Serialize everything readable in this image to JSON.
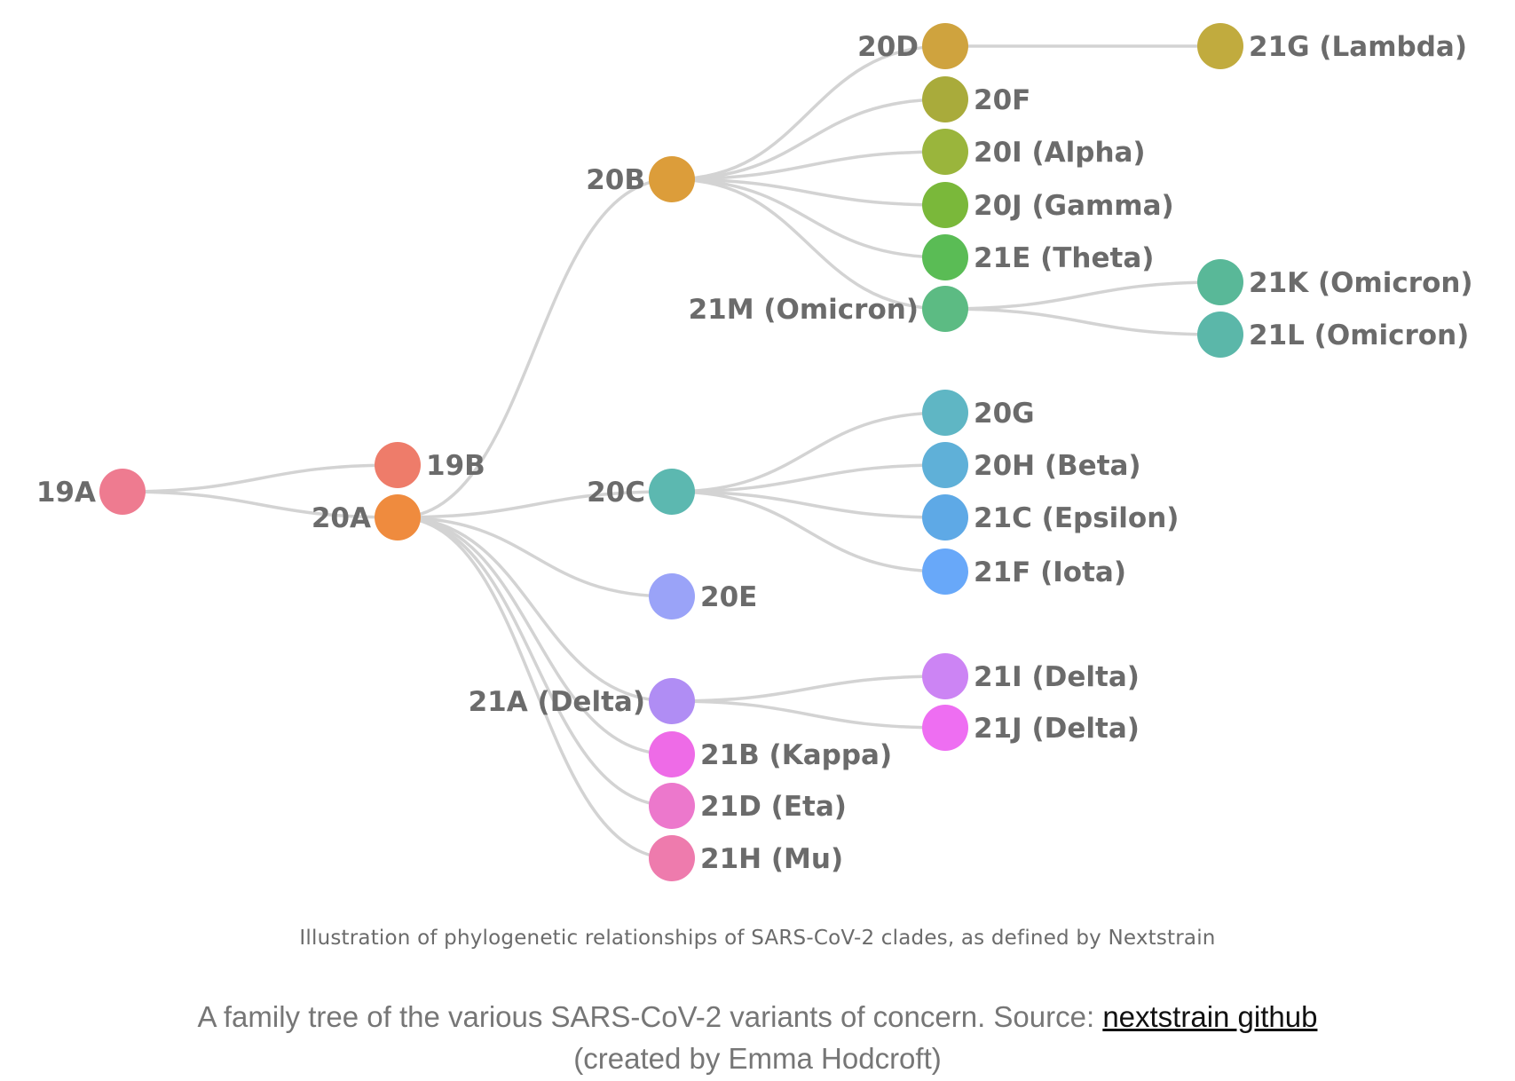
{
  "diagram": {
    "nodes": [
      {
        "id": "19A",
        "label": "19A",
        "color": "#ee7b90"
      },
      {
        "id": "19B",
        "label": "19B",
        "color": "#ee7c6a"
      },
      {
        "id": "20A",
        "label": "20A",
        "color": "#ef8b3e"
      },
      {
        "id": "20B",
        "label": "20B",
        "color": "#dc9d3a"
      },
      {
        "id": "20C",
        "label": "20C",
        "color": "#5cb8b0"
      },
      {
        "id": "20E",
        "label": "20E",
        "color": "#9aa3f8"
      },
      {
        "id": "21A",
        "label": "21A (Delta)",
        "color": "#b08df4"
      },
      {
        "id": "21B",
        "label": "21B (Kappa)",
        "color": "#ee6be7"
      },
      {
        "id": "21D",
        "label": "21D (Eta)",
        "color": "#ec78cc"
      },
      {
        "id": "21H",
        "label": "21H (Mu)",
        "color": "#ee7bad"
      },
      {
        "id": "20D",
        "label": "20D",
        "color": "#cfa33e"
      },
      {
        "id": "20F",
        "label": "20F",
        "color": "#a9ab3b"
      },
      {
        "id": "20I",
        "label": "20I (Alpha)",
        "color": "#9ab53c"
      },
      {
        "id": "20J",
        "label": "20J (Gamma)",
        "color": "#7ab83a"
      },
      {
        "id": "21E",
        "label": "21E (Theta)",
        "color": "#5abc55"
      },
      {
        "id": "21M",
        "label": "21M (Omicron)",
        "color": "#5cbb83"
      },
      {
        "id": "20G",
        "label": "20G",
        "color": "#5fb6c4"
      },
      {
        "id": "20H",
        "label": "20H (Beta)",
        "color": "#5fb0d8"
      },
      {
        "id": "21C",
        "label": "21C (Epsilon)",
        "color": "#5ea9e6"
      },
      {
        "id": "21F",
        "label": "21F (Iota)",
        "color": "#68a8f9"
      },
      {
        "id": "21I",
        "label": "21I (Delta)",
        "color": "#cc84f4"
      },
      {
        "id": "21J",
        "label": "21J (Delta)",
        "color": "#ee6ef2"
      },
      {
        "id": "21G",
        "label": "21G (Lambda)",
        "color": "#c1ab3e"
      },
      {
        "id": "21K",
        "label": "21K (Omicron)",
        "color": "#59b898"
      },
      {
        "id": "21L",
        "label": "21L (Omicron)",
        "color": "#5bb7a9"
      }
    ],
    "edges": [
      [
        "19A",
        "19B"
      ],
      [
        "19A",
        "20A"
      ],
      [
        "20A",
        "20B"
      ],
      [
        "20A",
        "20C"
      ],
      [
        "20A",
        "20E"
      ],
      [
        "20A",
        "21A"
      ],
      [
        "20A",
        "21B"
      ],
      [
        "20A",
        "21D"
      ],
      [
        "20A",
        "21H"
      ],
      [
        "20B",
        "20D"
      ],
      [
        "20B",
        "20F"
      ],
      [
        "20B",
        "20I"
      ],
      [
        "20B",
        "20J"
      ],
      [
        "20B",
        "21E"
      ],
      [
        "20B",
        "21M"
      ],
      [
        "20C",
        "20G"
      ],
      [
        "20C",
        "20H"
      ],
      [
        "20C",
        "21C"
      ],
      [
        "20C",
        "21F"
      ],
      [
        "21A",
        "21I"
      ],
      [
        "21A",
        "21J"
      ],
      [
        "20D",
        "21G"
      ],
      [
        "21M",
        "21K"
      ],
      [
        "21M",
        "21L"
      ]
    ],
    "edge_color": "#d3d3d3",
    "label_color": "#6b6b6b"
  },
  "figure_caption": "Illustration of phylogenetic relationships of SARS-CoV-2 clades, as defined by Nextstrain",
  "article_caption": {
    "text_before": "A family tree of the various SARS-CoV-2 variants of concern. Source: ",
    "link1": "nextstrain github",
    "text_after": " (created by Emma Hodcroft)"
  }
}
